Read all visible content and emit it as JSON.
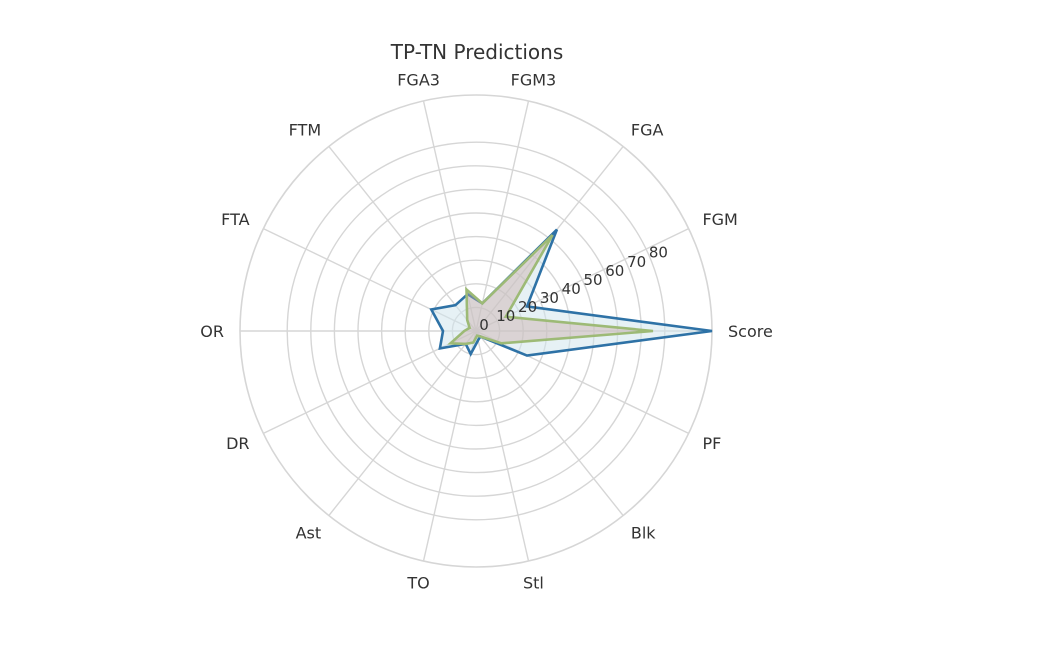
{
  "chart_data": {
    "type": "radar",
    "title": "TP-TN Predictions",
    "categories": [
      "Score",
      "FGM",
      "FGA",
      "FGM3",
      "FGA3",
      "FTM",
      "FTA",
      "OR",
      "DR",
      "Ast",
      "TO",
      "Stl",
      "Blk",
      "PF"
    ],
    "radial_ticks": [
      0,
      10,
      20,
      30,
      40,
      50,
      60,
      70,
      80
    ],
    "rlim": [
      0,
      100
    ],
    "grid": true,
    "series": [
      {
        "color": "#2e72a6",
        "fill": "#d2e6ec",
        "fill_opacity": 0.55,
        "values": [
          100,
          24,
          55,
          12,
          16,
          14,
          21,
          14,
          17,
          7,
          10,
          4,
          3,
          24
        ]
      },
      {
        "color": "#9dba76",
        "fill": "#c8a8a2",
        "fill_opacity": 0.4,
        "values": [
          75,
          14,
          52,
          12,
          18,
          6,
          3,
          5,
          12,
          7,
          5,
          2,
          3,
          12
        ]
      }
    ]
  }
}
